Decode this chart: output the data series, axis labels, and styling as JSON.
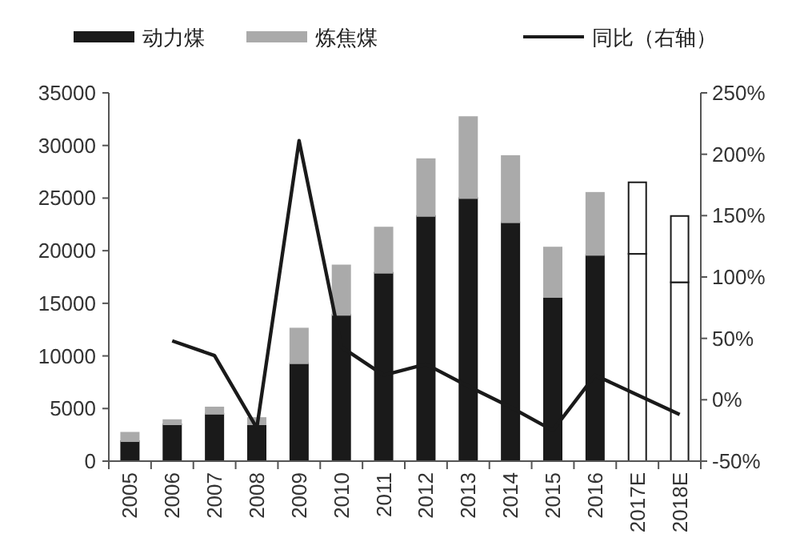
{
  "chart_data": {
    "type": "bar",
    "stacked": true,
    "legend": "top",
    "categories": [
      "2005",
      "2006",
      "2007",
      "2008",
      "2009",
      "2010",
      "2011",
      "2012",
      "2013",
      "2014",
      "2015",
      "2016",
      "2017E",
      "2018E"
    ],
    "series": [
      {
        "name": "动力煤",
        "color": "#1a1a1a",
        "colors": [
          "#1a1a1a",
          "#1a1a1a",
          "#1a1a1a",
          "#1a1a1a",
          "#1a1a1a",
          "#1a1a1a",
          "#1a1a1a",
          "#1a1a1a",
          "#1a1a1a",
          "#1a1a1a",
          "#1a1a1a",
          "#1a1a1a",
          "#ffffff",
          "#ffffff"
        ],
        "values": [
          1900,
          3500,
          4500,
          3500,
          9300,
          13900,
          17900,
          23300,
          25000,
          22700,
          15600,
          19600,
          19700,
          17000
        ]
      },
      {
        "name": "炼焦煤",
        "color": "#aaaaaa",
        "colors": [
          "#aaaaaa",
          "#aaaaaa",
          "#aaaaaa",
          "#aaaaaa",
          "#aaaaaa",
          "#aaaaaa",
          "#aaaaaa",
          "#aaaaaa",
          "#aaaaaa",
          "#aaaaaa",
          "#aaaaaa",
          "#aaaaaa",
          "#ffffff",
          "#ffffff"
        ],
        "values": [
          800,
          400,
          600,
          600,
          3300,
          4700,
          4300,
          5400,
          7700,
          6300,
          4700,
          5900,
          6800,
          6300
        ]
      },
      {
        "name": "同比（右轴）",
        "type": "line",
        "axis": "y2",
        "color": "#1a1a1a",
        "values": [
          null,
          48,
          36,
          -23,
          211,
          43,
          20,
          29,
          11,
          -6,
          -25,
          20,
          4,
          -12
        ]
      }
    ],
    "ylim": [
      0,
      35000
    ],
    "yticks": [
      0,
      5000,
      10000,
      15000,
      20000,
      25000,
      30000,
      35000
    ],
    "y2lim": [
      -50,
      250
    ],
    "y2ticks": [
      {
        "value": -50,
        "label": "-50%"
      },
      {
        "value": 0,
        "label": "0%"
      },
      {
        "value": 50,
        "label": "50%"
      },
      {
        "value": 100,
        "label": "100%"
      },
      {
        "value": 150,
        "label": "150%"
      },
      {
        "value": 200,
        "label": "200%"
      },
      {
        "value": 250,
        "label": "250%"
      }
    ]
  }
}
